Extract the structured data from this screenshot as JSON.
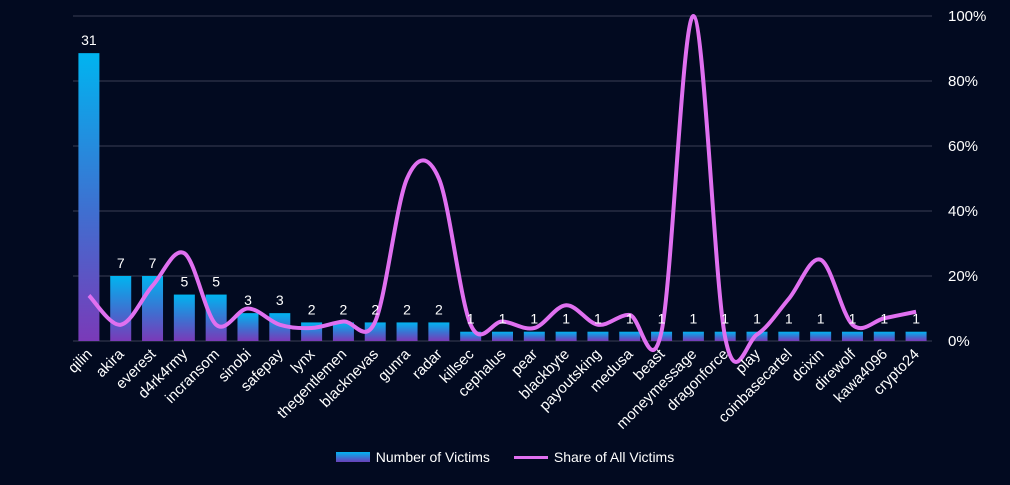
{
  "chart_data": {
    "type": "bar",
    "categories": [
      "qilin",
      "akira",
      "everest",
      "d4rk4rmy",
      "incransom",
      "sinobi",
      "safepay",
      "lynx",
      "thegentlemen",
      "blacknevas",
      "gunra",
      "radar",
      "killsec",
      "cephalus",
      "pear",
      "blackbyte",
      "payoutsking",
      "medusa",
      "beast",
      "moneymessage",
      "dragonforce",
      "play",
      "coinbasecartel",
      "dcixin",
      "direwolf",
      "kawa4096",
      "crypto24"
    ],
    "series": [
      {
        "name": "Number of Victims",
        "type": "bar",
        "axis": "left",
        "values": [
          31,
          7,
          7,
          5,
          5,
          3,
          3,
          2,
          2,
          2,
          2,
          2,
          1,
          1,
          1,
          1,
          1,
          1,
          1,
          1,
          1,
          1,
          1,
          1,
          1,
          1,
          1
        ]
      },
      {
        "name": "Share of All Victims",
        "type": "line",
        "axis": "right",
        "values": [
          14,
          5,
          17,
          27,
          5,
          10,
          5,
          4,
          6,
          6,
          50,
          50,
          5,
          6,
          4,
          11,
          5,
          8,
          3,
          100,
          1,
          2,
          13,
          25,
          5,
          7,
          9
        ]
      }
    ],
    "y_left_lim": [
      0,
      35
    ],
    "y_right_lim": [
      0,
      100
    ],
    "y_right_ticks": [
      "0%",
      "20%",
      "40%",
      "60%",
      "80%",
      "100%"
    ],
    "grid": true,
    "legend_position": "bottom"
  },
  "colors": {
    "background": "#020a20",
    "bar_top": "#00b4f0",
    "bar_bottom": "#6a3fb8",
    "line": "#e070f0",
    "grid": "#3a3f55",
    "text": "#ffffff"
  }
}
